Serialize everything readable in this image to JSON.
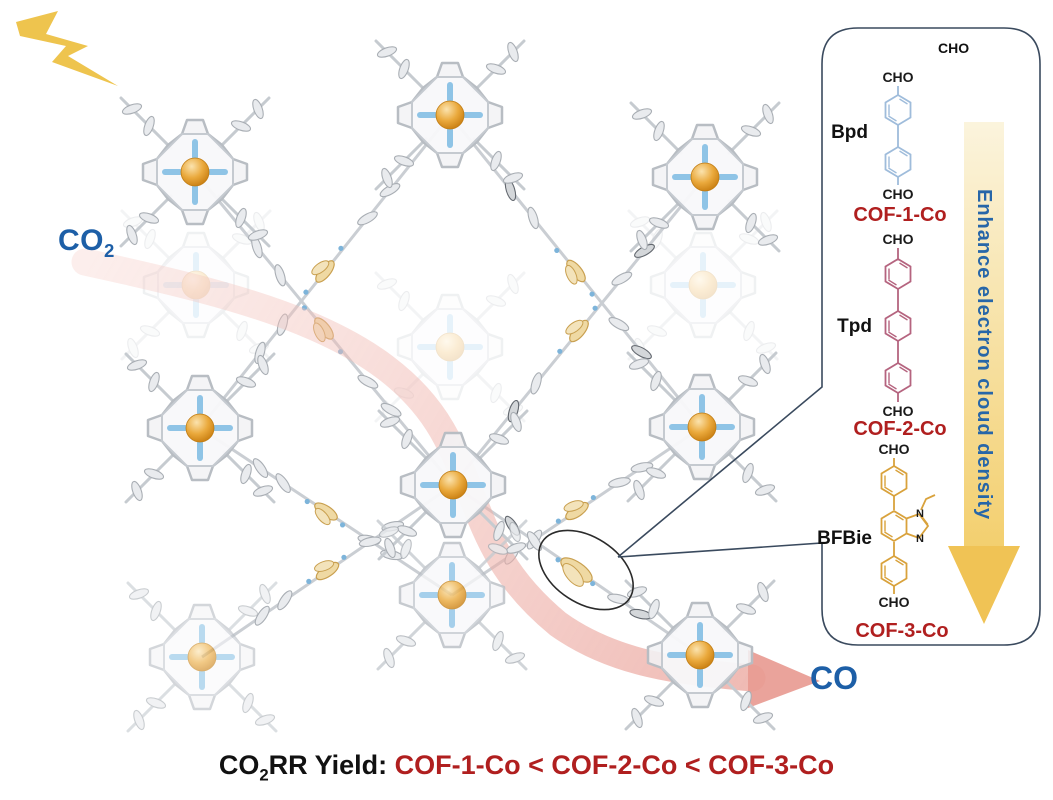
{
  "figure": {
    "co2_label": {
      "main": "CO",
      "sub": "2"
    },
    "co_label": "CO",
    "caption": {
      "black_main": "CO",
      "black_sub": "2",
      "black_rest": "RR Yield: ",
      "red": "COF-1-Co < COF-2-Co < COF-3-Co"
    }
  },
  "panel": {
    "corner_label": "CHO",
    "arrow_label": "Enhance electron cloud density",
    "linkers": [
      {
        "name": "Bpd",
        "cof_label": "COF-1-Co",
        "cho_top": "CHO",
        "cho_bottom": "CHO"
      },
      {
        "name": "Tpd",
        "cof_label": "COF-2-Co",
        "cho_top": "CHO",
        "cho_bottom": "CHO"
      },
      {
        "name": "BFBie",
        "cof_label": "COF-3-Co",
        "cho_top": "CHO",
        "cho_bottom": "CHO",
        "n_labels": [
          "N",
          "N"
        ]
      }
    ]
  },
  "colors": {
    "accent_blue": "#1d5fa7",
    "label_red": "#b01f1f",
    "bolt_yellow": "#eec44e",
    "flow_pink": "#e89b92",
    "bpd_blue": "#9fbcdb",
    "tpd_rose": "#b5647f",
    "bfbie_orange": "#d9a23c",
    "cobalt_orange": "#dd9426",
    "nitrogen_blue": "#8fc4e6",
    "panel_border": "#3a4a5e",
    "enhance_arrow_gold": "#f0c355"
  }
}
